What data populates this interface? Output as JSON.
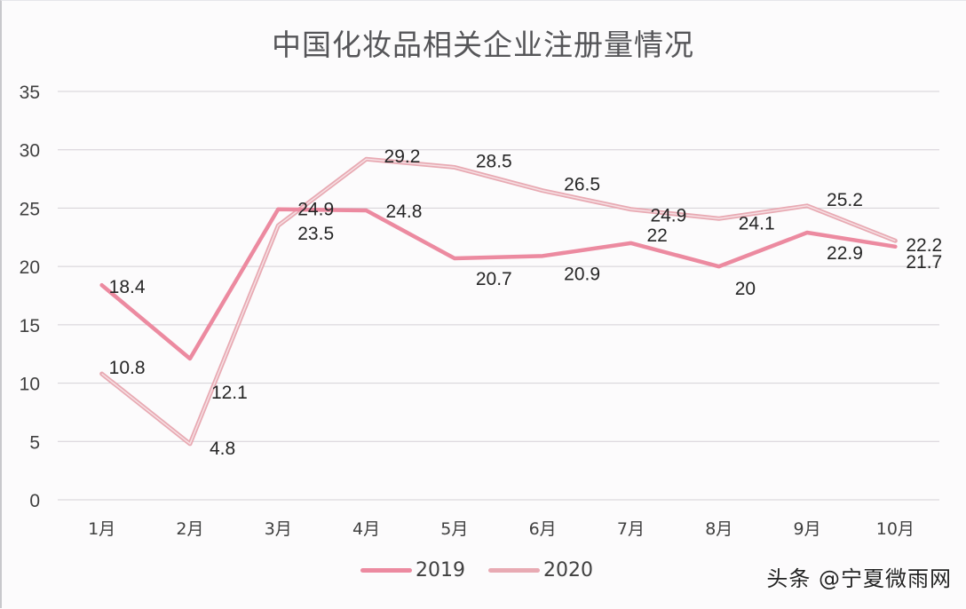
{
  "chart_data": {
    "type": "line",
    "title": "中国化妆品相关企业注册量情况",
    "categories": [
      "1月",
      "2月",
      "3月",
      "4月",
      "5月",
      "6月",
      "7月",
      "8月",
      "9月",
      "10月"
    ],
    "series": [
      {
        "name": "2019",
        "color": "#ec8aa0",
        "values": [
          18.4,
          12.1,
          24.9,
          24.8,
          20.7,
          20.9,
          22,
          20,
          22.9,
          21.7
        ]
      },
      {
        "name": "2020",
        "color": "#e8aab3",
        "values": [
          10.8,
          4.8,
          23.5,
          29.2,
          28.5,
          26.5,
          24.9,
          24.1,
          25.2,
          22.2
        ]
      }
    ],
    "xlabel": "",
    "ylabel": "",
    "ylim": [
      0,
      35
    ],
    "yticks": [
      0,
      5,
      10,
      15,
      20,
      25,
      30,
      35
    ],
    "grid": true,
    "legend_position": "bottom",
    "data_labels": true
  },
  "watermark": "头条 @宁夏微雨网"
}
